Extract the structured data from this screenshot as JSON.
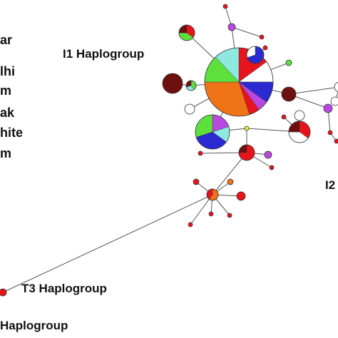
{
  "legend": {
    "items": [
      {
        "label": "ar"
      },
      {
        "label": "lhi"
      },
      {
        "label": "m"
      },
      {
        "label": "ak"
      },
      {
        "label": "hite"
      },
      {
        "label": "m"
      }
    ]
  },
  "haplogroups": {
    "i1": "I1 Haplogroup",
    "i2": "I2",
    "t3": "T3 Haplogroup",
    "other": "Haplogroup"
  },
  "colors": {
    "red": "#e8141c",
    "orange": "#f07318",
    "green": "#5ee03c",
    "cyan": "#8ee8e0",
    "blue": "#2a2ad0",
    "purple": "#b848e0",
    "white": "#ffffff",
    "maroon": "#6e1010",
    "yellow": "#f0f020"
  }
}
